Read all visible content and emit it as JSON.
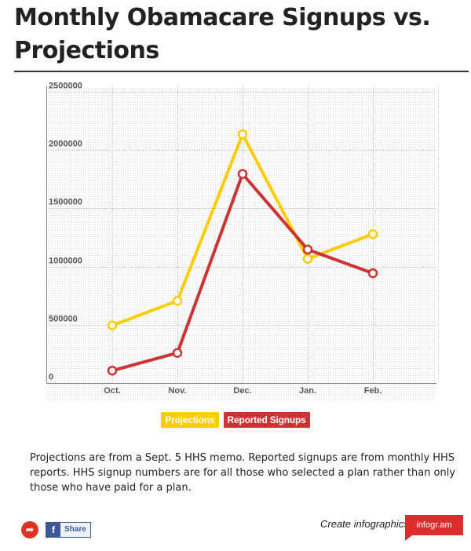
{
  "title": "Monthly Obamacare Signups vs. Projections",
  "note": "Projections are from a Sept. 5 HHS memo. Reported signups are from monthly HHS reports. HHS signup numbers are for all those who selected a plan rather than only those who have paid for a plan.",
  "footer": {
    "share_label": "Share",
    "fb_glyph": "f",
    "create_text": "Create infographics",
    "brand": "infogr.am"
  },
  "colors": {
    "projections": "#ffcc00",
    "reported": "#cc3333"
  },
  "chart_data": {
    "type": "line",
    "title": "Monthly Obamacare Signups vs. Projections",
    "xlabel": "",
    "ylabel": "",
    "categories": [
      "Oct.",
      "Nov.",
      "Dec.",
      "Jan.",
      "Feb."
    ],
    "ylim": [
      0,
      2500000
    ],
    "yticks": [
      0,
      500000,
      1000000,
      1500000,
      2000000,
      2500000
    ],
    "series": [
      {
        "name": "Projections",
        "color": "#ffcc00",
        "values": [
          494620,
          705507,
          2135121,
          1066114,
          1278514
        ]
      },
      {
        "name": "Reported Signups",
        "color": "#cc3333",
        "values": [
          106185,
          258497,
          1795256,
          1146100,
          943009
        ]
      }
    ],
    "legend": "bottom",
    "grid": true
  }
}
